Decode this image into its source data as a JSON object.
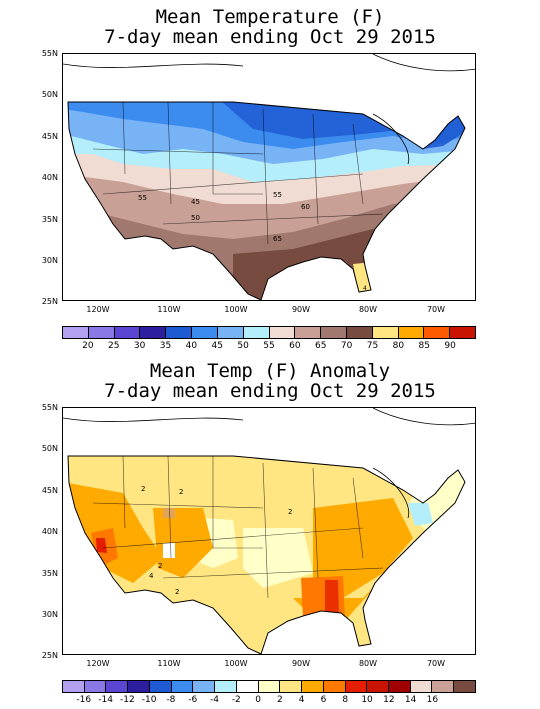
{
  "panel1": {
    "title_line1": "Mean Temperature (F)",
    "title_line2": "7-day mean ending Oct 29 2015",
    "contour_labels": [
      "55",
      "45",
      "50",
      "55",
      "60",
      "65",
      "4"
    ],
    "legend_labels": [
      "20",
      "25",
      "30",
      "35",
      "40",
      "45",
      "50",
      "55",
      "60",
      "65",
      "70",
      "75",
      "80",
      "85",
      "90"
    ],
    "legend_colors": [
      "#b4a0f0",
      "#8a78e6",
      "#5a46d2",
      "#2d1ea0",
      "#1e5ad2",
      "#3c8cf0",
      "#78b4f5",
      "#b4eefa",
      "#f0dcd2",
      "#c8a096",
      "#a0786e",
      "#784b41",
      "#ffe682",
      "#ffaa00",
      "#ff5a00",
      "#c81400"
    ]
  },
  "panel2": {
    "title_line1": "Mean Temp (F) Anomaly",
    "title_line2": "7-day mean ending Oct 29 2015",
    "contour_labels": [
      "2",
      "2",
      "2",
      "2",
      "4",
      "2"
    ],
    "legend_labels": [
      "-16",
      "-14",
      "-12",
      "-10",
      "-8",
      "-6",
      "-4",
      "-2",
      "0",
      "2",
      "4",
      "6",
      "8",
      "10",
      "12",
      "14",
      "16"
    ],
    "legend_colors": [
      "#b4a0f0",
      "#8a78e6",
      "#5a46d2",
      "#2d1ea0",
      "#1e5ad2",
      "#3c8cf0",
      "#78b4f5",
      "#b4eefa",
      "#ffffff",
      "#ffffc8",
      "#ffe682",
      "#ffaa00",
      "#ff7800",
      "#e61e00",
      "#c81400",
      "#a00000",
      "#f0dcd2",
      "#c8a096",
      "#784b41"
    ]
  },
  "axes": {
    "lat_labels": [
      "55N",
      "50N",
      "45N",
      "40N",
      "35N",
      "30N",
      "25N"
    ],
    "lon_labels": [
      "120W",
      "110W",
      "100W",
      "90W",
      "80W",
      "70W"
    ]
  }
}
